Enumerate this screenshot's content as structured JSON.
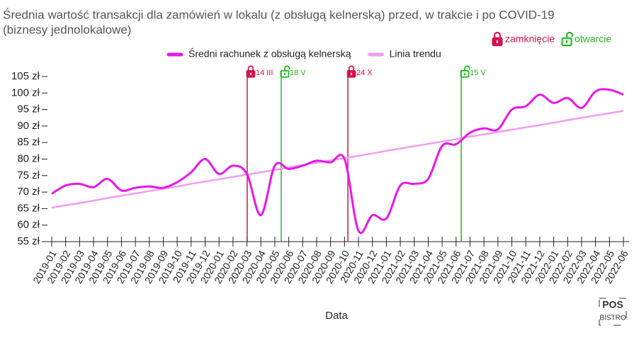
{
  "chart_data": {
    "type": "line",
    "title": [
      "Średnia wartość transakcji dla zamówień w lokalu (z obsługą kelnerską) przed, w trakcie i po COVID-19",
      "(biznesy jednolokalowe)"
    ],
    "x_label": "Data",
    "categories": [
      "2019-01",
      "2019-02",
      "2019-03",
      "2019-04",
      "2019-05",
      "2019-06",
      "2019-07",
      "2019-08",
      "2019-09",
      "2019-10",
      "2019-11",
      "2019-12",
      "2020-01",
      "2020-02",
      "2020-03",
      "2020-04",
      "2020-05",
      "2020-06",
      "2020-07",
      "2020-08",
      "2020-09",
      "2020-10",
      "2020-11",
      "2020-12",
      "2021-01",
      "2021-02",
      "2021-03",
      "2021-04",
      "2021-05",
      "2021-06",
      "2021-07",
      "2021-08",
      "2021-09",
      "2021-10",
      "2021-11",
      "2021-12",
      "2022-01",
      "2022-02",
      "2022-03",
      "2022-04",
      "2022-05",
      "2022-06"
    ],
    "series": [
      {
        "name": "Średni rachunek z obsługą kelnerską",
        "color": "#e619e6",
        "smooth": true,
        "values": [
          69.5,
          72,
          72.5,
          71.5,
          74,
          70.5,
          71.3,
          71.7,
          71.3,
          73,
          76,
          80,
          75.5,
          78,
          75.5,
          63,
          78,
          77,
          78,
          79.5,
          79,
          80,
          58.3,
          63,
          62,
          72,
          72.5,
          74,
          84,
          84.5,
          88,
          89.3,
          89,
          95,
          96,
          99.5,
          97,
          98.5,
          95.5,
          100.5,
          101,
          99.5
        ]
      },
      {
        "name": "Linia trendu",
        "color": "#f29cf2",
        "smooth": false,
        "values": [
          65.3,
          66.0,
          66.7,
          67.4,
          68.2,
          68.9,
          69.6,
          70.3,
          71.0,
          71.7,
          72.5,
          73.2,
          73.9,
          74.6,
          75.3,
          76.0,
          76.7,
          77.5,
          78.2,
          78.9,
          79.6,
          80.3,
          81.0,
          81.7,
          82.5,
          83.2,
          83.9,
          84.6,
          85.3,
          86.0,
          86.8,
          87.5,
          88.2,
          88.9,
          89.6,
          90.3,
          91.0,
          91.8,
          92.5,
          93.2,
          93.9,
          94.6
        ]
      }
    ],
    "ylim": [
      55,
      107
    ],
    "yticks": [
      {
        "value": 55,
        "label": "55 zł"
      },
      {
        "value": 60,
        "label": "60 zł"
      },
      {
        "value": 65,
        "label": "65 zł"
      },
      {
        "value": 70,
        "label": "70 zł"
      },
      {
        "value": 75,
        "label": "75 zł"
      },
      {
        "value": 80,
        "label": "80 zł"
      },
      {
        "value": 85,
        "label": "85 zł"
      },
      {
        "value": 90,
        "label": "90 zł"
      },
      {
        "value": 95,
        "label": "95 zł"
      },
      {
        "value": 100,
        "label": "100 zł"
      },
      {
        "value": 105,
        "label": "105 zł"
      }
    ],
    "event_types": [
      {
        "name": "zamknięcie",
        "color": "#d5124a",
        "open": false
      },
      {
        "name": "otwarcie",
        "color": "#1fb51f",
        "open": true
      }
    ],
    "events": [
      {
        "label": "14 III",
        "kind": 0,
        "x": 14.02
      },
      {
        "label": "18 V",
        "kind": 1,
        "x": 16.46
      },
      {
        "label": "24 X",
        "kind": 0,
        "x": 21.24
      },
      {
        "label": "15 V",
        "kind": 1,
        "x": 29.37
      }
    ],
    "logo": [
      "POS",
      "BISTRO"
    ]
  }
}
